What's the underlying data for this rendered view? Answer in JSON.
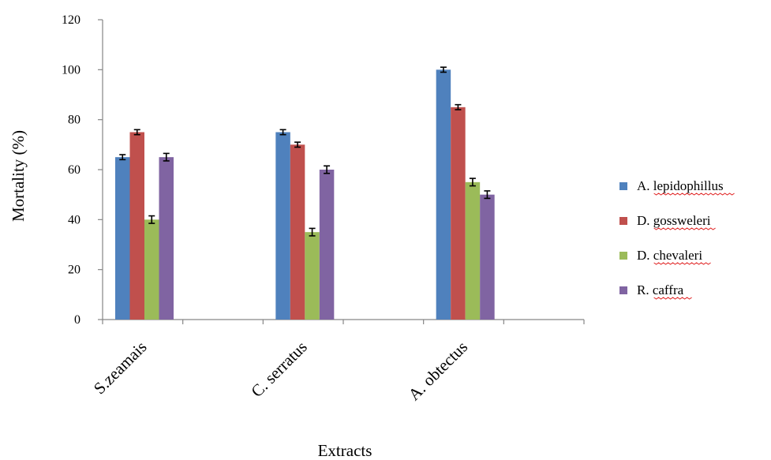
{
  "chart_data": {
    "type": "bar",
    "title": "",
    "xlabel": "Extracts",
    "ylabel": "Mortality (%)",
    "ylim": [
      0,
      120
    ],
    "yticks": [
      0,
      20,
      40,
      60,
      80,
      100,
      120
    ],
    "categories": [
      "S.zeamais",
      "C. serratus",
      "A. obtectus"
    ],
    "series": [
      {
        "name": "A. lepidophillus",
        "color": "#4f81bd",
        "values": [
          65,
          75,
          100
        ],
        "errors": [
          1,
          1,
          1
        ]
      },
      {
        "name": "D. gossweleri",
        "color": "#c0504d",
        "values": [
          75,
          70,
          85
        ],
        "errors": [
          1,
          1,
          1
        ]
      },
      {
        "name": "D. chevaleri",
        "color": "#9bbb59",
        "values": [
          40,
          35,
          55
        ],
        "errors": [
          1.5,
          1.5,
          1.5
        ]
      },
      {
        "name": "R. caffra",
        "color": "#8064a2",
        "values": [
          65,
          60,
          50
        ],
        "errors": [
          1.5,
          1.5,
          1.5
        ]
      }
    ],
    "grid": false,
    "legend_position": "right"
  }
}
